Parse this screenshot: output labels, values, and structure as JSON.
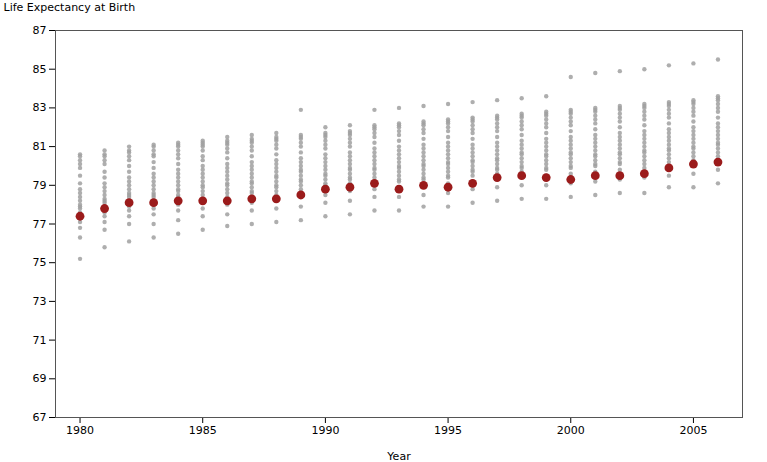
{
  "chart_data": {
    "type": "scatter",
    "xlabel": "Year",
    "ylabel": "Life Expectancy at Birth",
    "xlim": [
      1979.0,
      2007.0
    ],
    "xticks": [
      1980,
      1985,
      1990,
      1995,
      2000,
      2005
    ],
    "ylim": [
      67,
      87
    ],
    "yticks": [
      67,
      69,
      71,
      73,
      75,
      77,
      79,
      81,
      83,
      85,
      87
    ],
    "grid": false,
    "x": [
      1980,
      1981,
      1982,
      1983,
      1984,
      1985,
      1986,
      1987,
      1988,
      1989,
      1990,
      1991,
      1992,
      1993,
      1994,
      1995,
      1996,
      1997,
      1998,
      1999,
      2000,
      2001,
      2002,
      2003,
      2004,
      2005,
      2006
    ],
    "series": [
      {
        "color": "#A0A0A0",
        "values": [
          75.2,
          75.8,
          76.1,
          76.3,
          76.5,
          76.7,
          76.9,
          77.0,
          77.1,
          77.2,
          77.4,
          77.5,
          77.7,
          77.7,
          77.9,
          77.9,
          78.1,
          78.2,
          78.3,
          78.3,
          78.4,
          78.5,
          78.6,
          78.6,
          78.9,
          78.9,
          79.1
        ]
      },
      {
        "color": "#A0A0A0",
        "values": [
          76.3,
          76.7,
          77.0,
          77.0,
          77.2,
          77.4,
          77.5,
          77.7,
          77.8,
          77.9,
          78.1,
          78.2,
          78.4,
          78.4,
          78.5,
          78.6,
          78.8,
          78.9,
          79.0,
          79.0,
          79.1,
          79.2,
          79.3,
          79.4,
          79.5,
          79.6,
          79.8
        ]
      },
      {
        "color": "#A0A0A0",
        "values": [
          76.8,
          77.1,
          77.4,
          77.5,
          77.7,
          77.8,
          78.0,
          78.1,
          78.2,
          78.4,
          78.5,
          78.7,
          78.8,
          78.9,
          79.0,
          79.1,
          79.2,
          79.4,
          79.5,
          79.5,
          79.6,
          79.7,
          79.8,
          79.9,
          80.0,
          80.1,
          80.3
        ]
      },
      {
        "color": "#A0A0A0",
        "values": [
          77.1,
          77.4,
          77.7,
          77.8,
          78.0,
          78.1,
          78.2,
          78.4,
          78.5,
          78.6,
          78.8,
          78.9,
          79.1,
          79.2,
          79.3,
          79.4,
          79.5,
          79.6,
          79.7,
          79.8,
          79.9,
          80.0,
          80.1,
          80.1,
          80.2,
          80.3,
          80.5
        ]
      },
      {
        "color": "#A0A0A0",
        "values": [
          77.3,
          77.6,
          77.9,
          78.0,
          78.2,
          78.3,
          78.4,
          78.6,
          78.7,
          78.8,
          79.0,
          79.1,
          79.2,
          79.3,
          79.4,
          79.5,
          79.7,
          79.8,
          79.9,
          79.9,
          80.0,
          80.1,
          80.2,
          80.3,
          80.4,
          80.5,
          80.7
        ]
      },
      {
        "color": "#A0A0A0",
        "values": [
          77.5,
          77.8,
          78.1,
          78.2,
          78.4,
          78.5,
          78.6,
          78.7,
          78.9,
          79.0,
          79.1,
          79.3,
          79.4,
          79.5,
          79.6,
          79.7,
          79.8,
          79.9,
          80.0,
          80.1,
          80.2,
          80.3,
          80.4,
          80.5,
          80.6,
          80.7,
          80.9
        ]
      },
      {
        "color": "#A0A0A0",
        "values": [
          77.6,
          77.9,
          78.2,
          78.4,
          78.5,
          78.7,
          78.8,
          78.9,
          79.0,
          79.2,
          79.3,
          79.4,
          79.6,
          79.7,
          79.8,
          79.9,
          80.0,
          80.1,
          80.2,
          80.3,
          80.4,
          80.5,
          80.6,
          80.7,
          80.8,
          80.9,
          81.1
        ]
      },
      {
        "color": "#A0A0A0",
        "values": [
          77.8,
          78.1,
          78.4,
          78.5,
          78.7,
          78.9,
          79.0,
          79.1,
          79.2,
          79.3,
          79.5,
          79.6,
          79.8,
          79.9,
          80.0,
          80.1,
          80.2,
          80.3,
          80.4,
          80.5,
          80.6,
          80.6,
          80.7,
          80.8,
          80.9,
          81.0,
          81.2
        ]
      },
      {
        "color": "#A0A0A0",
        "values": [
          77.9,
          78.2,
          78.5,
          78.6,
          78.8,
          79.0,
          79.1,
          79.2,
          79.4,
          79.5,
          79.6,
          79.8,
          79.9,
          80.0,
          80.1,
          80.2,
          80.3,
          80.4,
          80.6,
          80.6,
          80.7,
          80.8,
          80.9,
          81.0,
          81.1,
          81.2,
          81.4
        ]
      },
      {
        "color": "#A0A0A0",
        "values": [
          78.0,
          78.3,
          78.6,
          78.8,
          79.0,
          79.2,
          79.3,
          79.4,
          79.5,
          79.7,
          79.8,
          79.9,
          80.1,
          80.2,
          80.3,
          80.4,
          80.5,
          80.6,
          80.7,
          80.8,
          80.9,
          81.0,
          81.1,
          81.2,
          81.3,
          81.4,
          81.6
        ]
      },
      {
        "color": "#A0A0A0",
        "values": [
          78.2,
          78.5,
          78.8,
          79.0,
          79.2,
          79.4,
          79.5,
          79.6,
          79.7,
          79.8,
          80.0,
          80.1,
          80.3,
          80.4,
          80.5,
          80.6,
          80.7,
          80.8,
          80.9,
          81.0,
          81.1,
          81.2,
          81.3,
          81.4,
          81.5,
          81.6,
          81.8
        ]
      },
      {
        "color": "#A0A0A0",
        "values": [
          78.4,
          78.7,
          79.0,
          79.2,
          79.4,
          79.6,
          79.7,
          79.8,
          79.9,
          80.0,
          80.2,
          80.3,
          80.5,
          80.6,
          80.7,
          80.8,
          80.9,
          81.0,
          81.1,
          81.2,
          81.3,
          81.4,
          81.5,
          81.6,
          81.7,
          81.8,
          82.0
        ]
      },
      {
        "color": "#A0A0A0",
        "values": [
          78.6,
          78.9,
          79.2,
          79.4,
          79.6,
          79.8,
          79.9,
          80.0,
          80.1,
          80.2,
          80.4,
          80.5,
          80.7,
          80.8,
          80.9,
          81.0,
          81.1,
          81.2,
          81.3,
          81.4,
          81.5,
          81.6,
          81.7,
          81.8,
          81.9,
          82.0,
          82.2
        ]
      },
      {
        "color": "#A0A0A0",
        "values": [
          78.8,
          79.1,
          79.4,
          79.6,
          79.8,
          80.0,
          80.1,
          80.2,
          80.3,
          80.4,
          80.6,
          80.7,
          80.9,
          81.0,
          81.1,
          81.2,
          81.4,
          81.5,
          81.6,
          81.7,
          81.8,
          81.9,
          82.0,
          82.1,
          82.2,
          82.3,
          82.5
        ]
      },
      {
        "color": "#A0A0A0",
        "values": [
          79.1,
          79.4,
          79.7,
          79.9,
          80.1,
          80.3,
          80.4,
          80.5,
          80.6,
          80.7,
          80.9,
          81.0,
          81.2,
          81.3,
          81.4,
          81.5,
          81.7,
          81.8,
          81.9,
          82.0,
          82.1,
          82.2,
          82.3,
          82.4,
          82.5,
          82.6,
          82.8
        ]
      },
      {
        "color": "#A0A0A0",
        "values": [
          79.5,
          79.7,
          80.0,
          80.2,
          80.4,
          80.5,
          80.7,
          80.8,
          80.9,
          81.0,
          81.1,
          81.2,
          81.5,
          81.6,
          81.7,
          81.8,
          81.9,
          82.0,
          82.1,
          82.2,
          82.3,
          82.4,
          82.5,
          82.6,
          82.7,
          82.8,
          83.0
        ]
      },
      {
        "color": "#A0A0A0",
        "values": [
          79.9,
          80.1,
          80.3,
          80.5,
          80.6,
          80.8,
          80.9,
          81.0,
          81.1,
          81.2,
          81.3,
          81.4,
          81.7,
          81.8,
          81.9,
          82.0,
          82.1,
          82.2,
          82.3,
          82.4,
          82.5,
          82.6,
          82.7,
          82.8,
          82.9,
          83.0,
          83.2
        ]
      },
      {
        "color": "#A0A0A0",
        "values": [
          80.1,
          80.3,
          80.5,
          80.6,
          80.8,
          81.0,
          81.1,
          81.2,
          81.3,
          81.4,
          81.5,
          81.6,
          81.9,
          82.0,
          82.1,
          82.2,
          82.3,
          82.4,
          82.5,
          82.6,
          82.7,
          82.8,
          82.9,
          83.0,
          83.1,
          83.2,
          83.4
        ]
      },
      {
        "color": "#A0A0A0",
        "values": [
          80.3,
          80.5,
          80.7,
          80.8,
          81.0,
          81.1,
          81.2,
          81.3,
          81.4,
          81.5,
          81.6,
          81.7,
          82.0,
          82.1,
          82.2,
          82.3,
          82.4,
          82.5,
          82.6,
          82.7,
          82.8,
          82.9,
          83.0,
          83.1,
          83.2,
          83.3,
          83.5
        ]
      },
      {
        "color": "#A0A0A0",
        "values": [
          80.5,
          80.6,
          80.8,
          81.0,
          81.1,
          81.2,
          81.3,
          81.4,
          81.5,
          81.6,
          81.7,
          81.8,
          82.1,
          82.2,
          82.3,
          82.4,
          82.5,
          82.6,
          82.7,
          82.8,
          82.9,
          83.0,
          83.1,
          83.2,
          83.3,
          83.4,
          83.6
        ]
      },
      {
        "color": "#A0A0A0",
        "values": [
          80.6,
          80.8,
          81.0,
          81.1,
          81.2,
          81.3,
          81.5,
          81.6,
          81.7,
          82.9,
          82.0,
          82.1,
          82.9,
          83.0,
          83.1,
          83.2,
          83.3,
          83.4,
          83.5,
          83.6,
          84.6,
          84.8,
          84.9,
          85.0,
          85.2,
          85.3,
          85.5
        ]
      },
      {
        "color": "#9B1B1B",
        "values": [
          77.4,
          77.8,
          78.1,
          78.1,
          78.2,
          78.2,
          78.2,
          78.3,
          78.3,
          78.5,
          78.8,
          78.9,
          79.1,
          78.8,
          79.0,
          78.9,
          79.1,
          79.4,
          79.5,
          79.4,
          79.3,
          79.5,
          79.5,
          79.6,
          79.9,
          80.1,
          80.2
        ]
      }
    ]
  }
}
